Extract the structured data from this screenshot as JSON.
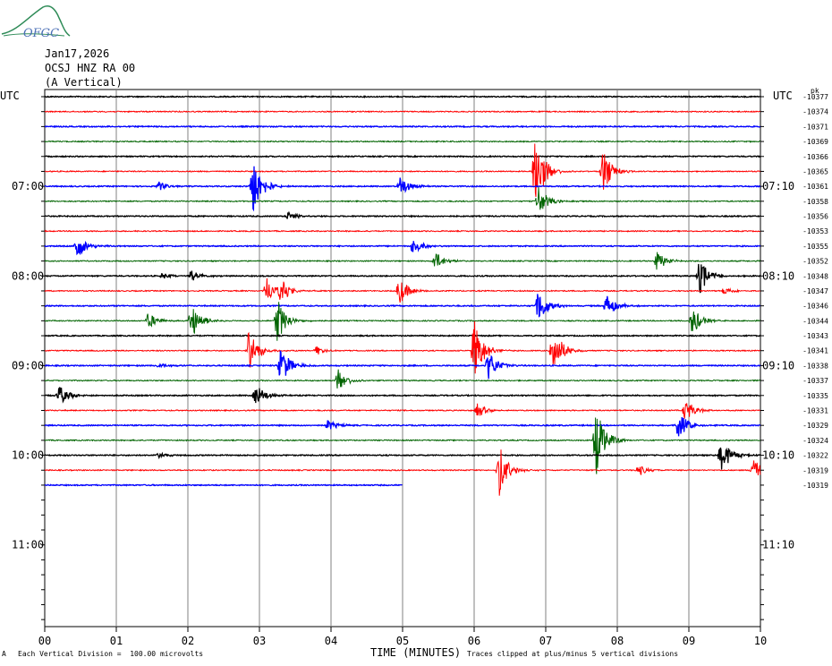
{
  "header": {
    "date": "Jan17,2026",
    "station": "OCSJ HNZ RA 00",
    "component": "(A Vertical)",
    "logo_text": "OFGC",
    "left_unit": "UTC",
    "right_unit": "UTC",
    "pk_label": "pk"
  },
  "footer": {
    "scale_mark": "A",
    "scale_note": "Each Vertical Division =  100.00 microvolts",
    "xlabel": "TIME (MINUTES)",
    "clip_note": "Traces clipped at plus/minus 5 vertical divisions"
  },
  "colors": {
    "trace_cycle": [
      "#000000",
      "#ff0000",
      "#0000ff",
      "#006400"
    ],
    "grid": "#808080"
  },
  "chart_data": {
    "type": "line",
    "title": "OCSJ HNZ RA 00",
    "xlabel": "TIME (MINUTES)",
    "ylabel": "UTC",
    "xlim": [
      0,
      10
    ],
    "x_ticks": [
      "00",
      "01",
      "02",
      "03",
      "04",
      "05",
      "06",
      "07",
      "08",
      "09",
      "10"
    ],
    "rows_per_hour": 6,
    "left_hour_labels": [
      {
        "row": 6,
        "label": "07:00"
      },
      {
        "row": 12,
        "label": "08:00"
      },
      {
        "row": 18,
        "label": "09:00"
      },
      {
        "row": 24,
        "label": "10:00"
      },
      {
        "row": 30,
        "label": "11:00"
      }
    ],
    "right_hour_labels": [
      {
        "row": 6,
        "label": "07:10"
      },
      {
        "row": 12,
        "label": "08:10"
      },
      {
        "row": 18,
        "label": "09:10"
      },
      {
        "row": 24,
        "label": "10:10"
      },
      {
        "row": 30,
        "label": "11:10"
      }
    ],
    "total_rows": 36,
    "trace_count": 27,
    "last_trace_end_min": 5,
    "series_peaks": [
      "-10377",
      "-10374",
      "-10371",
      "-10369",
      "-10366",
      "-10365",
      "-10361",
      "-10358",
      "-10356",
      "-10353",
      "-10355",
      "-10352",
      "-10348",
      "-10347",
      "-10346",
      "-10344",
      "-10343",
      "-10341",
      "-10338",
      "-10337",
      "-10335",
      "-10331",
      "-10329",
      "-10324",
      "-10322",
      "-10319",
      "-10319"
    ],
    "events": [
      {
        "row": 6,
        "t": 2.9,
        "amp": 2.2
      },
      {
        "row": 6,
        "t": 1.6,
        "amp": 0.3
      },
      {
        "row": 6,
        "t": 4.97,
        "amp": 0.7
      },
      {
        "row": 5,
        "t": 6.85,
        "amp": 3.0
      },
      {
        "row": 5,
        "t": 7.8,
        "amp": 1.5
      },
      {
        "row": 7,
        "t": 6.9,
        "amp": 1.0
      },
      {
        "row": 8,
        "t": 3.4,
        "amp": 0.3
      },
      {
        "row": 10,
        "t": 0.45,
        "amp": 0.9
      },
      {
        "row": 10,
        "t": 5.15,
        "amp": 0.6
      },
      {
        "row": 11,
        "t": 5.45,
        "amp": 0.7
      },
      {
        "row": 11,
        "t": 8.55,
        "amp": 0.7
      },
      {
        "row": 12,
        "t": 2.05,
        "amp": 0.4
      },
      {
        "row": 12,
        "t": 1.65,
        "amp": 0.2
      },
      {
        "row": 12,
        "t": 9.15,
        "amp": 1.2
      },
      {
        "row": 13,
        "t": 3.1,
        "amp": 0.9
      },
      {
        "row": 13,
        "t": 3.3,
        "amp": 0.8
      },
      {
        "row": 13,
        "t": 4.95,
        "amp": 1.0
      },
      {
        "row": 13,
        "t": 9.5,
        "amp": 0.3
      },
      {
        "row": 14,
        "t": 6.9,
        "amp": 1.2
      },
      {
        "row": 14,
        "t": 7.85,
        "amp": 0.8
      },
      {
        "row": 15,
        "t": 1.45,
        "amp": 0.6
      },
      {
        "row": 15,
        "t": 2.05,
        "amp": 1.3
      },
      {
        "row": 15,
        "t": 3.25,
        "amp": 1.5
      },
      {
        "row": 15,
        "t": 9.05,
        "amp": 1.0
      },
      {
        "row": 17,
        "t": 2.85,
        "amp": 1.5
      },
      {
        "row": 17,
        "t": 3.8,
        "amp": 0.3
      },
      {
        "row": 17,
        "t": 6.0,
        "amp": 2.2
      },
      {
        "row": 17,
        "t": 7.1,
        "amp": 1.8
      },
      {
        "row": 18,
        "t": 3.3,
        "amp": 1.3
      },
      {
        "row": 18,
        "t": 6.2,
        "amp": 1.0
      },
      {
        "row": 18,
        "t": 1.6,
        "amp": 0.2
      },
      {
        "row": 19,
        "t": 4.1,
        "amp": 0.8
      },
      {
        "row": 20,
        "t": 0.2,
        "amp": 0.7
      },
      {
        "row": 20,
        "t": 2.95,
        "amp": 0.8
      },
      {
        "row": 21,
        "t": 6.05,
        "amp": 0.5
      },
      {
        "row": 21,
        "t": 8.95,
        "amp": 0.8
      },
      {
        "row": 22,
        "t": 3.95,
        "amp": 0.4
      },
      {
        "row": 22,
        "t": 8.85,
        "amp": 1.0
      },
      {
        "row": 23,
        "t": 7.7,
        "amp": 2.5
      },
      {
        "row": 24,
        "t": 1.6,
        "amp": 0.2
      },
      {
        "row": 24,
        "t": 9.45,
        "amp": 1.3
      },
      {
        "row": 25,
        "t": 6.35,
        "amp": 1.8
      },
      {
        "row": 25,
        "t": 8.3,
        "amp": 0.4
      },
      {
        "row": 25,
        "t": 9.9,
        "amp": 0.8
      }
    ]
  }
}
